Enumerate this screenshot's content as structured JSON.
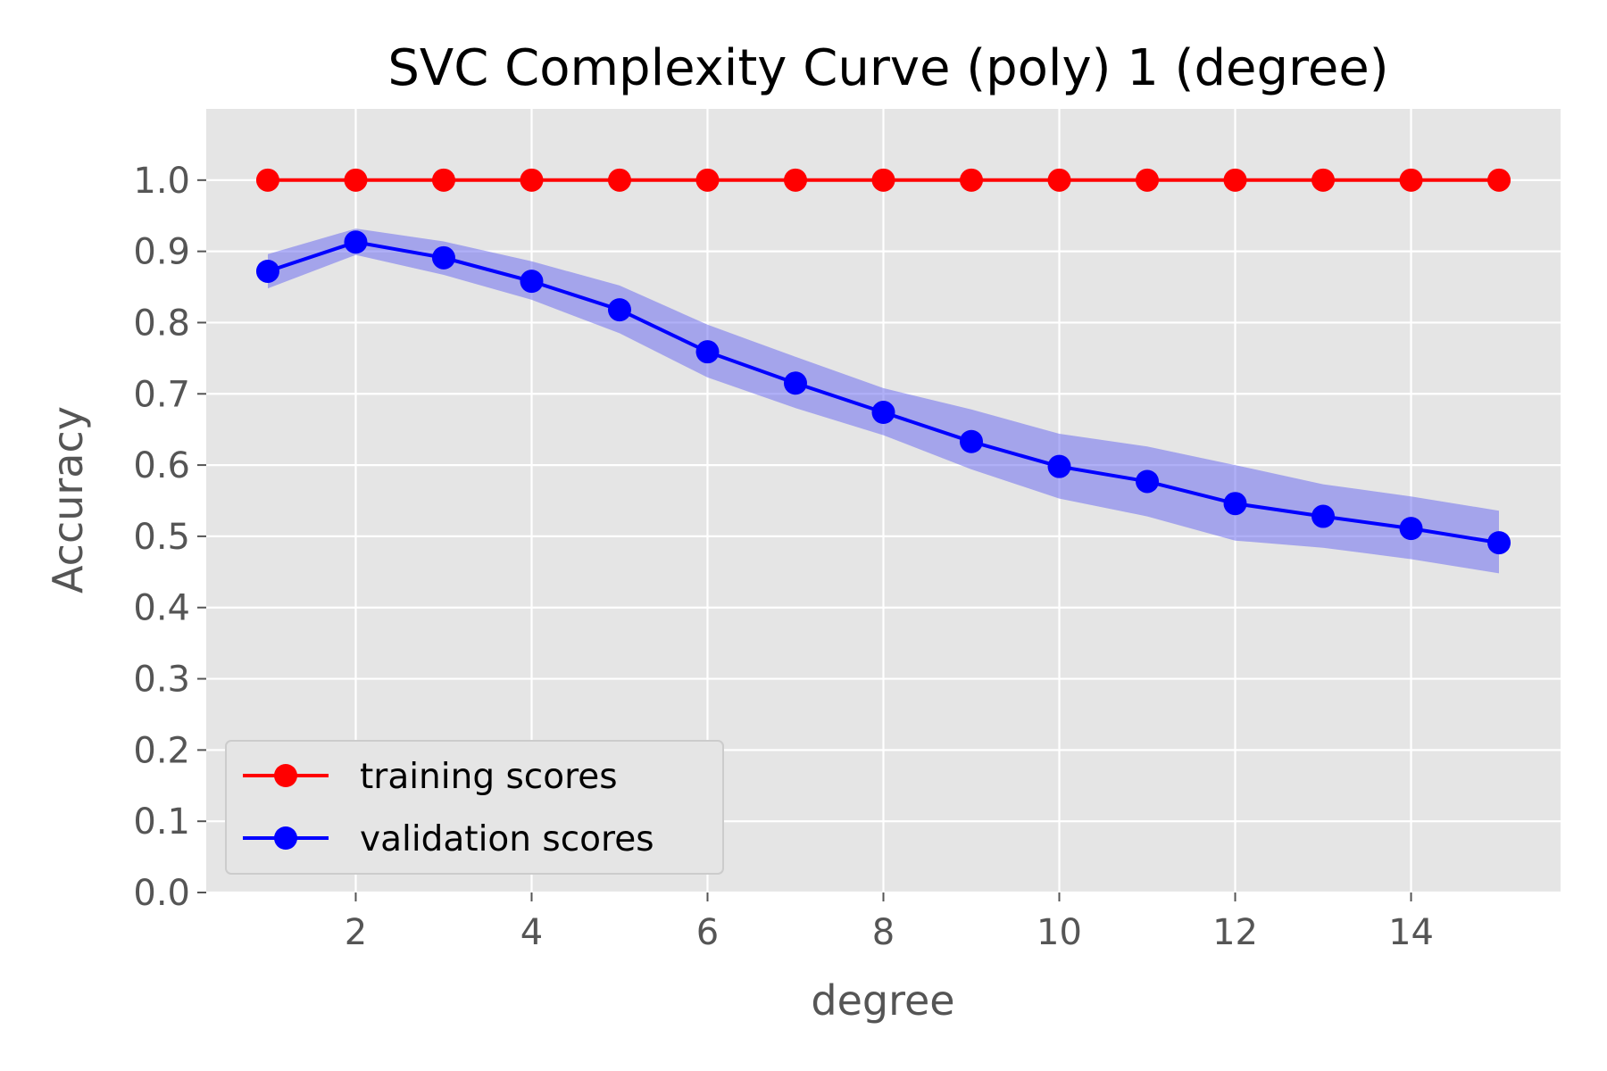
{
  "chart_data": {
    "type": "line",
    "title": "SVC Complexity Curve (poly) 1 (degree)",
    "xlabel": "degree",
    "ylabel": "Accuracy",
    "xlim": [
      0.3,
      15.7
    ],
    "ylim": [
      0.0,
      1.1
    ],
    "x_ticks": [
      2,
      4,
      6,
      8,
      10,
      12,
      14
    ],
    "y_ticks": [
      0.0,
      0.1,
      0.2,
      0.3,
      0.4,
      0.5,
      0.6,
      0.7,
      0.8,
      0.9,
      1.0
    ],
    "grid": true,
    "legend_position": "lower-left",
    "x": [
      1,
      2,
      3,
      4,
      5,
      6,
      7,
      8,
      9,
      10,
      11,
      12,
      13,
      14,
      15
    ],
    "series": [
      {
        "name": "training scores",
        "color": "#ff0000",
        "values": [
          1.0,
          1.0,
          1.0,
          1.0,
          1.0,
          1.0,
          1.0,
          1.0,
          1.0,
          1.0,
          1.0,
          1.0,
          1.0,
          1.0,
          1.0
        ]
      },
      {
        "name": "validation scores",
        "color": "#0000ff",
        "band_color": "#6f6ff0",
        "values": [
          0.872,
          0.913,
          0.891,
          0.858,
          0.818,
          0.759,
          0.715,
          0.674,
          0.633,
          0.598,
          0.577,
          0.546,
          0.528,
          0.511,
          0.491
        ],
        "lower": [
          0.848,
          0.895,
          0.867,
          0.832,
          0.785,
          0.723,
          0.68,
          0.642,
          0.594,
          0.553,
          0.528,
          0.494,
          0.484,
          0.468,
          0.448
        ],
        "upper": [
          0.896,
          0.932,
          0.914,
          0.886,
          0.852,
          0.797,
          0.752,
          0.708,
          0.678,
          0.644,
          0.626,
          0.6,
          0.573,
          0.556,
          0.536
        ]
      }
    ]
  }
}
